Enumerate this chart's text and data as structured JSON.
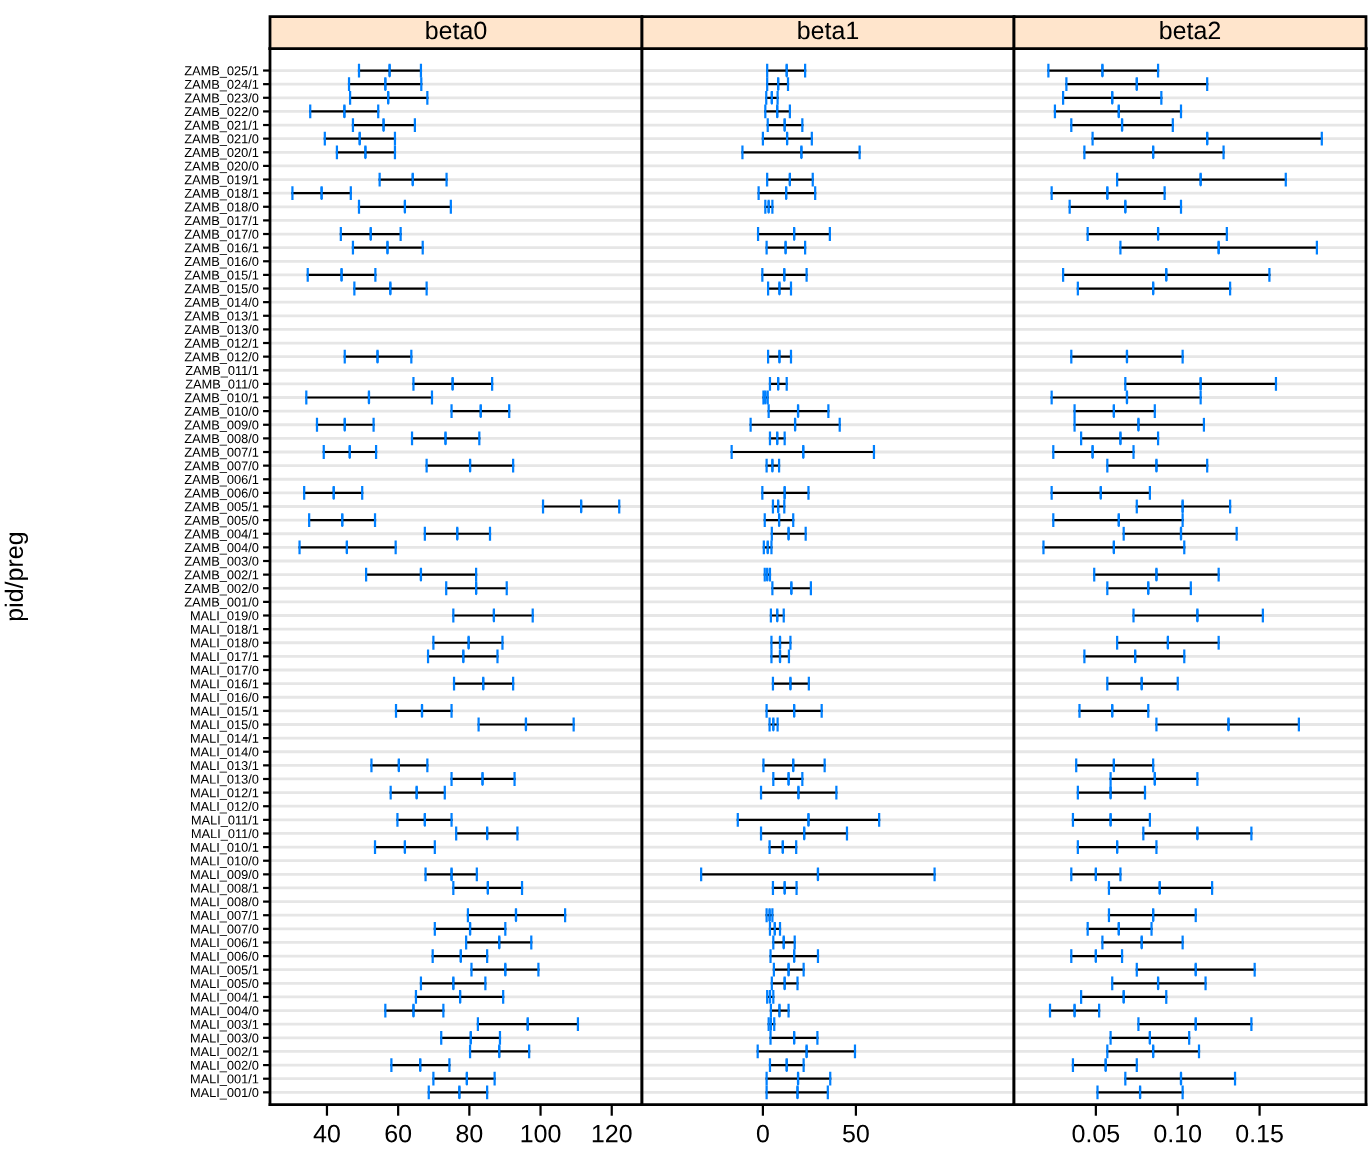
{
  "chart_data": [
    {
      "type": "box",
      "title": "beta0",
      "ylabel": "pid/preg",
      "orientation": "horizontal",
      "grid": "y",
      "xlim": [
        24,
        128.5
      ],
      "xticks": [
        40,
        60,
        80,
        100,
        120
      ],
      "categories": [
        "ZAMB_025/1",
        "ZAMB_024/1",
        "ZAMB_023/0",
        "ZAMB_022/0",
        "ZAMB_021/1",
        "ZAMB_021/0",
        "ZAMB_020/1",
        "ZAMB_020/0",
        "ZAMB_019/1",
        "ZAMB_018/1",
        "ZAMB_018/0",
        "ZAMB_017/1",
        "ZAMB_017/0",
        "ZAMB_016/1",
        "ZAMB_016/0",
        "ZAMB_015/1",
        "ZAMB_015/0",
        "ZAMB_014/0",
        "ZAMB_013/1",
        "ZAMB_013/0",
        "ZAMB_012/1",
        "ZAMB_012/0",
        "ZAMB_011/1",
        "ZAMB_011/0",
        "ZAMB_010/1",
        "ZAMB_010/0",
        "ZAMB_009/0",
        "ZAMB_008/0",
        "ZAMB_007/1",
        "ZAMB_007/0",
        "ZAMB_006/1",
        "ZAMB_006/0",
        "ZAMB_005/1",
        "ZAMB_005/0",
        "ZAMB_004/1",
        "ZAMB_004/0",
        "ZAMB_003/0",
        "ZAMB_002/1",
        "ZAMB_002/0",
        "ZAMB_001/0",
        "MALI_019/0",
        "MALI_018/1",
        "MALI_018/0",
        "MALI_017/1",
        "MALI_017/0",
        "MALI_016/1",
        "MALI_016/0",
        "MALI_015/1",
        "MALI_015/0",
        "MALI_014/1",
        "MALI_014/0",
        "MALI_013/1",
        "MALI_013/0",
        "MALI_012/1",
        "MALI_012/0",
        "MALI_011/1",
        "MALI_011/0",
        "MALI_010/1",
        "MALI_010/0",
        "MALI_009/0",
        "MALI_008/1",
        "MALI_008/0",
        "MALI_007/1",
        "MALI_007/0",
        "MALI_006/1",
        "MALI_006/0",
        "MALI_005/1",
        "MALI_005/0",
        "MALI_004/1",
        "MALI_004/0",
        "MALI_003/1",
        "MALI_003/0",
        "MALI_002/1",
        "MALI_002/0",
        "MALI_001/1",
        "MALI_001/0"
      ],
      "series": [
        {
          "color": "#0080ff",
          "boxes": [
            {
              "low": 49.0,
              "q1": 57.6,
              "median": 57.6,
              "q3": 57.6,
              "high": 66.4
            },
            {
              "low": 46.2,
              "q1": 56.4,
              "median": 56.4,
              "q3": 56.4,
              "high": 66.5
            },
            {
              "low": 46.5,
              "q1": 57.2,
              "median": 57.2,
              "q3": 57.2,
              "high": 68.2
            },
            {
              "low": 35.3,
              "q1": 44.9,
              "median": 44.9,
              "q3": 44.9,
              "high": 54.4
            },
            {
              "low": 47.3,
              "q1": 55.9,
              "median": 55.9,
              "q3": 55.9,
              "high": 64.7
            },
            {
              "low": 39.4,
              "q1": 49.2,
              "median": 49.2,
              "q3": 49.2,
              "high": 59.1
            },
            {
              "low": 42.8,
              "q1": 50.8,
              "median": 50.8,
              "q3": 50.8,
              "high": 59.1
            },
            null,
            {
              "low": 54.8,
              "q1": 64.1,
              "median": 64.1,
              "q3": 64.1,
              "high": 73.6
            },
            {
              "low": 30.3,
              "q1": 38.5,
              "median": 38.5,
              "q3": 38.5,
              "high": 46.7
            },
            {
              "low": 49.0,
              "q1": 61.9,
              "median": 61.9,
              "q3": 61.9,
              "high": 74.8
            },
            null,
            {
              "low": 43.9,
              "q1": 52.3,
              "median": 52.3,
              "q3": 52.3,
              "high": 60.7
            },
            {
              "low": 47.3,
              "q1": 57.0,
              "median": 57.0,
              "q3": 57.0,
              "high": 66.9
            },
            null,
            {
              "low": 34.6,
              "q1": 44.1,
              "median": 44.1,
              "q3": 44.1,
              "high": 53.6
            },
            {
              "low": 47.7,
              "q1": 57.8,
              "median": 57.8,
              "q3": 57.8,
              "high": 68.0
            },
            null,
            null,
            null,
            null,
            {
              "low": 45.0,
              "q1": 54.2,
              "median": 54.2,
              "q3": 54.2,
              "high": 63.7
            },
            null,
            {
              "low": 64.3,
              "q1": 75.3,
              "median": 75.3,
              "q3": 75.3,
              "high": 86.4
            },
            {
              "low": 34.2,
              "q1": 51.8,
              "median": 51.8,
              "q3": 51.8,
              "high": 69.5
            },
            {
              "low": 75.0,
              "q1": 83.2,
              "median": 83.2,
              "q3": 83.2,
              "high": 91.2
            },
            {
              "low": 37.2,
              "q1": 45.0,
              "median": 45.0,
              "q3": 45.0,
              "high": 53.1
            },
            {
              "low": 63.9,
              "q1": 73.3,
              "median": 73.3,
              "q3": 73.3,
              "high": 82.8
            },
            {
              "low": 39.1,
              "q1": 46.4,
              "median": 46.4,
              "q3": 46.4,
              "high": 53.8
            },
            {
              "low": 68.0,
              "q1": 80.2,
              "median": 80.2,
              "q3": 80.2,
              "high": 92.3
            },
            null,
            {
              "low": 33.6,
              "q1": 41.9,
              "median": 41.9,
              "q3": 41.9,
              "high": 49.9
            },
            {
              "low": 100.7,
              "q1": 111.4,
              "median": 111.4,
              "q3": 111.4,
              "high": 122.1
            },
            {
              "low": 35.0,
              "q1": 44.3,
              "median": 44.3,
              "q3": 44.3,
              "high": 53.5
            },
            {
              "low": 67.5,
              "q1": 76.6,
              "median": 76.6,
              "q3": 76.6,
              "high": 85.8
            },
            {
              "low": 32.3,
              "q1": 45.6,
              "median": 45.6,
              "q3": 45.6,
              "high": 59.3
            },
            null,
            {
              "low": 51.0,
              "q1": 66.4,
              "median": 66.4,
              "q3": 66.4,
              "high": 81.9
            },
            {
              "low": 73.5,
              "q1": 81.9,
              "median": 81.9,
              "q3": 81.9,
              "high": 90.5
            },
            null,
            {
              "low": 75.5,
              "q1": 86.9,
              "median": 86.9,
              "q3": 86.9,
              "high": 97.8
            },
            null,
            {
              "low": 69.9,
              "q1": 79.8,
              "median": 79.8,
              "q3": 79.8,
              "high": 89.3
            },
            {
              "low": 68.4,
              "q1": 78.3,
              "median": 78.3,
              "q3": 78.3,
              "high": 87.9
            },
            null,
            {
              "low": 75.7,
              "q1": 83.9,
              "median": 83.9,
              "q3": 83.9,
              "high": 92.3
            },
            null,
            {
              "low": 59.4,
              "q1": 66.7,
              "median": 66.7,
              "q3": 66.7,
              "high": 75.0
            },
            {
              "low": 82.6,
              "q1": 95.9,
              "median": 95.9,
              "q3": 95.9,
              "high": 109.3
            },
            null,
            null,
            {
              "low": 52.5,
              "q1": 60.2,
              "median": 60.2,
              "q3": 60.2,
              "high": 68.2
            },
            {
              "low": 75.0,
              "q1": 83.7,
              "median": 83.7,
              "q3": 83.7,
              "high": 92.7
            },
            {
              "low": 57.9,
              "q1": 65.2,
              "median": 65.2,
              "q3": 65.2,
              "high": 73.1
            },
            null,
            {
              "low": 59.8,
              "q1": 67.5,
              "median": 67.5,
              "q3": 67.5,
              "high": 75.0
            },
            {
              "low": 76.3,
              "q1": 85.0,
              "median": 85.0,
              "q3": 85.0,
              "high": 93.5
            },
            {
              "low": 53.5,
              "q1": 61.9,
              "median": 61.9,
              "q3": 61.9,
              "high": 70.3
            },
            null,
            {
              "low": 67.7,
              "q1": 75.0,
              "median": 75.0,
              "q3": 75.0,
              "high": 82.1
            },
            {
              "low": 75.5,
              "q1": 85.2,
              "median": 85.2,
              "q3": 85.2,
              "high": 94.8
            },
            null,
            {
              "low": 79.6,
              "q1": 93.1,
              "median": 93.1,
              "q3": 93.1,
              "high": 106.9
            },
            {
              "low": 70.3,
              "q1": 80.2,
              "median": 80.2,
              "q3": 80.2,
              "high": 90.1
            },
            {
              "low": 79.1,
              "q1": 88.4,
              "median": 88.4,
              "q3": 88.4,
              "high": 97.4
            },
            {
              "low": 69.7,
              "q1": 77.6,
              "median": 77.6,
              "q3": 77.6,
              "high": 85.0
            },
            {
              "low": 80.6,
              "q1": 90.1,
              "median": 90.1,
              "q3": 90.1,
              "high": 99.4
            },
            {
              "low": 66.4,
              "q1": 75.5,
              "median": 75.5,
              "q3": 75.5,
              "high": 84.5
            },
            {
              "low": 65.0,
              "q1": 77.4,
              "median": 77.4,
              "q3": 77.4,
              "high": 89.5
            },
            {
              "low": 56.4,
              "q1": 64.3,
              "median": 64.3,
              "q3": 64.3,
              "high": 72.7
            },
            {
              "low": 82.4,
              "q1": 96.4,
              "median": 96.4,
              "q3": 96.4,
              "high": 110.5
            },
            {
              "low": 72.1,
              "q1": 80.4,
              "median": 80.4,
              "q3": 80.4,
              "high": 88.6
            },
            {
              "low": 80.2,
              "q1": 88.4,
              "median": 88.4,
              "q3": 88.4,
              "high": 96.8
            },
            {
              "low": 58.1,
              "q1": 66.2,
              "median": 66.2,
              "q3": 66.2,
              "high": 74.4
            },
            {
              "low": 69.9,
              "q1": 79.3,
              "median": 79.3,
              "q3": 79.3,
              "high": 87.1
            },
            {
              "low": 68.6,
              "q1": 77.2,
              "median": 77.2,
              "q3": 77.2,
              "high": 85.0
            }
          ]
        }
      ]
    },
    {
      "type": "box",
      "title": "beta1",
      "orientation": "horizontal",
      "grid": "y",
      "tick_labels": "x",
      "xlim": [
        -65,
        135
      ],
      "xticks": [
        0,
        50
      ],
      "categories": [
        null,
        null,
        null,
        null,
        null,
        null,
        null,
        null,
        null,
        null,
        null,
        null,
        null,
        null,
        null,
        null,
        null,
        null,
        null,
        null,
        null,
        null,
        null,
        null,
        null,
        null,
        null,
        null,
        null,
        null,
        null,
        null,
        null,
        null,
        null,
        null,
        null,
        null,
        null,
        null,
        null,
        null,
        null,
        null,
        null,
        null,
        null,
        null,
        null,
        null,
        null,
        null,
        null,
        null,
        null,
        null,
        null,
        null,
        null,
        null,
        null,
        null,
        null,
        null,
        null,
        null,
        null,
        null,
        null,
        null,
        null,
        null,
        null,
        null,
        null,
        null
      ],
      "series": [
        {
          "color": "#0080ff",
          "boxes": [
            {
              "low": 2.3,
              "q1": 12.8,
              "median": 12.8,
              "q3": 12.8,
              "high": 22.7
            },
            {
              "low": 2.3,
              "q1": 8.2,
              "median": 8.2,
              "q3": 8.2,
              "high": 13.5
            },
            {
              "low": 1.8,
              "q1": 4.8,
              "median": 4.8,
              "q3": 4.8,
              "high": 7.9
            },
            {
              "low": 1.3,
              "q1": 7.7,
              "median": 7.7,
              "q3": 7.7,
              "high": 14.5
            },
            {
              "low": 2.6,
              "q1": 11.7,
              "median": 11.7,
              "q3": 11.7,
              "high": 21.2
            },
            {
              "low": 0.0,
              "q1": 13.0,
              "median": 13.0,
              "q3": 13.0,
              "high": 26.3
            },
            {
              "low": -11.0,
              "q1": 20.7,
              "median": 20.7,
              "q3": 20.7,
              "high": 52.0
            },
            null,
            {
              "low": 2.3,
              "q1": 14.5,
              "median": 14.5,
              "q3": 14.5,
              "high": 26.8
            },
            {
              "low": -2.3,
              "q1": 12.5,
              "median": 12.5,
              "q3": 12.5,
              "high": 28.1
            },
            {
              "low": 1.3,
              "q1": 3.1,
              "median": 3.1,
              "q3": 3.1,
              "high": 5.1
            },
            null,
            {
              "low": -2.6,
              "q1": 16.8,
              "median": 16.8,
              "q3": 16.8,
              "high": 36.0
            },
            {
              "low": 2.0,
              "q1": 12.2,
              "median": 12.2,
              "q3": 12.2,
              "high": 22.7
            },
            null,
            {
              "low": -0.3,
              "q1": 11.5,
              "median": 11.5,
              "q3": 11.5,
              "high": 23.5
            },
            {
              "low": 2.8,
              "q1": 8.9,
              "median": 8.9,
              "q3": 8.9,
              "high": 15.1
            },
            null,
            null,
            null,
            null,
            {
              "low": 2.8,
              "q1": 8.9,
              "median": 8.9,
              "q3": 8.9,
              "high": 15.1
            },
            null,
            {
              "low": 3.8,
              "q1": 8.2,
              "median": 8.2,
              "q3": 8.2,
              "high": 12.8
            },
            {
              "low": 0.3,
              "q1": 1.3,
              "median": 1.3,
              "q3": 1.3,
              "high": 2.6
            },
            {
              "low": 3.1,
              "q1": 18.9,
              "median": 18.9,
              "q3": 18.9,
              "high": 35.2
            },
            {
              "low": -6.6,
              "q1": 17.3,
              "median": 17.3,
              "q3": 17.3,
              "high": 41.3
            },
            {
              "low": 3.8,
              "q1": 7.7,
              "median": 7.7,
              "q3": 7.7,
              "high": 11.7
            },
            {
              "low": -16.8,
              "q1": 21.7,
              "median": 21.7,
              "q3": 21.7,
              "high": 59.7
            },
            {
              "low": 2.0,
              "q1": 5.1,
              "median": 5.1,
              "q3": 5.1,
              "high": 8.7
            },
            null,
            {
              "low": -0.3,
              "q1": 11.7,
              "median": 11.7,
              "q3": 11.7,
              "high": 24.5
            },
            {
              "low": 5.4,
              "q1": 8.2,
              "median": 8.2,
              "q3": 8.2,
              "high": 11.5
            },
            {
              "low": 1.0,
              "q1": 8.7,
              "median": 8.7,
              "q3": 8.7,
              "high": 16.3
            },
            {
              "low": 4.8,
              "q1": 13.8,
              "median": 13.8,
              "q3": 13.8,
              "high": 23.0
            },
            {
              "low": 0.5,
              "q1": 2.6,
              "median": 2.6,
              "q3": 2.6,
              "high": 4.6
            },
            null,
            {
              "low": 1.0,
              "q1": 2.3,
              "median": 2.3,
              "q3": 2.3,
              "high": 3.8
            },
            {
              "low": 5.1,
              "q1": 15.3,
              "median": 15.3,
              "q3": 15.3,
              "high": 25.8
            },
            null,
            {
              "low": 4.3,
              "q1": 7.7,
              "median": 7.7,
              "q3": 7.7,
              "high": 11.2
            },
            null,
            {
              "low": 4.6,
              "q1": 9.2,
              "median": 9.2,
              "q3": 9.2,
              "high": 14.8
            },
            {
              "low": 4.6,
              "q1": 9.2,
              "median": 9.2,
              "q3": 9.2,
              "high": 14.0
            },
            null,
            {
              "low": 5.4,
              "q1": 14.8,
              "median": 14.8,
              "q3": 14.8,
              "high": 24.7
            },
            null,
            {
              "low": 2.0,
              "q1": 16.8,
              "median": 16.8,
              "q3": 16.8,
              "high": 31.6
            },
            {
              "low": 3.6,
              "q1": 5.6,
              "median": 5.6,
              "q3": 5.6,
              "high": 7.9
            },
            null,
            null,
            {
              "low": 0.3,
              "q1": 16.3,
              "median": 16.3,
              "q3": 16.3,
              "high": 33.2
            },
            {
              "low": 5.6,
              "q1": 13.8,
              "median": 13.8,
              "q3": 13.8,
              "high": 21.2
            },
            {
              "low": -1.0,
              "q1": 19.1,
              "median": 19.1,
              "q3": 19.1,
              "high": 39.5
            },
            null,
            {
              "low": -13.5,
              "q1": 24.5,
              "median": 24.5,
              "q3": 24.5,
              "high": 62.5
            },
            {
              "low": -1.0,
              "q1": 22.2,
              "median": 22.2,
              "q3": 22.2,
              "high": 45.2
            },
            {
              "low": 3.6,
              "q1": 10.7,
              "median": 10.7,
              "q3": 10.7,
              "high": 17.9
            },
            null,
            {
              "low": -33.2,
              "q1": 29.6,
              "median": 29.6,
              "q3": 29.6,
              "high": 92.3
            },
            {
              "low": 5.4,
              "q1": 11.7,
              "median": 11.7,
              "q3": 11.7,
              "high": 18.1
            },
            null,
            {
              "low": 2.0,
              "q1": 3.6,
              "median": 3.6,
              "q3": 3.6,
              "high": 5.1
            },
            {
              "low": 3.8,
              "q1": 6.4,
              "median": 6.4,
              "q3": 6.4,
              "high": 9.2
            },
            {
              "low": 5.6,
              "q1": 11.2,
              "median": 11.2,
              "q3": 11.2,
              "high": 17.1
            },
            {
              "low": 4.1,
              "q1": 16.8,
              "median": 16.8,
              "q3": 16.8,
              "high": 29.6
            },
            {
              "low": 5.9,
              "q1": 13.8,
              "median": 13.8,
              "q3": 13.8,
              "high": 21.9
            },
            {
              "low": 4.8,
              "q1": 11.7,
              "median": 11.7,
              "q3": 11.7,
              "high": 18.6
            },
            {
              "low": 2.3,
              "q1": 3.8,
              "median": 3.8,
              "q3": 3.8,
              "high": 5.6
            },
            {
              "low": 4.3,
              "q1": 8.9,
              "median": 8.9,
              "q3": 8.9,
              "high": 13.8
            },
            {
              "low": 3.1,
              "q1": 4.3,
              "median": 4.3,
              "q3": 4.3,
              "high": 6.1
            },
            {
              "low": 4.1,
              "q1": 16.8,
              "median": 16.8,
              "q3": 16.8,
              "high": 29.3
            },
            {
              "low": -2.8,
              "q1": 23.5,
              "median": 23.5,
              "q3": 23.5,
              "high": 49.5
            },
            {
              "low": 3.8,
              "q1": 12.8,
              "median": 12.8,
              "q3": 12.8,
              "high": 21.9
            },
            {
              "low": 2.0,
              "q1": 18.9,
              "median": 18.9,
              "q3": 18.9,
              "high": 36.2
            },
            {
              "low": 2.0,
              "q1": 18.6,
              "median": 18.6,
              "q3": 18.6,
              "high": 34.9
            }
          ]
        }
      ]
    },
    {
      "type": "box",
      "title": "beta2",
      "orientation": "horizontal",
      "grid": "y",
      "tick_labels": "x",
      "xlim": [
        0.0,
        0.215
      ],
      "xticks": [
        0.05,
        {
          "value": 0.1,
          "label": "0.10"
        },
        0.15
      ],
      "categories": [
        null,
        null,
        null,
        null,
        null,
        null,
        null,
        null,
        null,
        null,
        null,
        null,
        null,
        null,
        null,
        null,
        null,
        null,
        null,
        null,
        null,
        null,
        null,
        null,
        null,
        null,
        null,
        null,
        null,
        null,
        null,
        null,
        null,
        null,
        null,
        null,
        null,
        null,
        null,
        null,
        null,
        null,
        null,
        null,
        null,
        null,
        null,
        null,
        null,
        null,
        null,
        null,
        null,
        null,
        null,
        null,
        null,
        null,
        null,
        null,
        null,
        null,
        null,
        null,
        null,
        null,
        null,
        null,
        null,
        null,
        null,
        null,
        null,
        null,
        null,
        null
      ],
      "series": [
        {
          "color": "#0080ff",
          "boxes": [
            {
              "low": 0.021,
              "q1": 0.054,
              "median": 0.054,
              "q3": 0.054,
              "high": 0.088
            },
            {
              "low": 0.032,
              "q1": 0.075,
              "median": 0.075,
              "q3": 0.075,
              "high": 0.118
            },
            {
              "low": 0.03,
              "q1": 0.06,
              "median": 0.06,
              "q3": 0.06,
              "high": 0.09
            },
            {
              "low": 0.025,
              "q1": 0.064,
              "median": 0.064,
              "q3": 0.064,
              "high": 0.102
            },
            {
              "low": 0.035,
              "q1": 0.066,
              "median": 0.066,
              "q3": 0.066,
              "high": 0.097
            },
            {
              "low": 0.048,
              "q1": 0.118,
              "median": 0.118,
              "q3": 0.118,
              "high": 0.188
            },
            {
              "low": 0.043,
              "q1": 0.085,
              "median": 0.085,
              "q3": 0.085,
              "high": 0.128
            },
            null,
            {
              "low": 0.063,
              "q1": 0.114,
              "median": 0.114,
              "q3": 0.114,
              "high": 0.166
            },
            {
              "low": 0.023,
              "q1": 0.057,
              "median": 0.057,
              "q3": 0.057,
              "high": 0.092
            },
            {
              "low": 0.034,
              "q1": 0.068,
              "median": 0.068,
              "q3": 0.068,
              "high": 0.102
            },
            null,
            {
              "low": 0.045,
              "q1": 0.088,
              "median": 0.088,
              "q3": 0.088,
              "high": 0.13
            },
            {
              "low": 0.065,
              "q1": 0.125,
              "median": 0.125,
              "q3": 0.125,
              "high": 0.185
            },
            null,
            {
              "low": 0.03,
              "q1": 0.093,
              "median": 0.093,
              "q3": 0.093,
              "high": 0.156
            },
            {
              "low": 0.039,
              "q1": 0.085,
              "median": 0.085,
              "q3": 0.085,
              "high": 0.132
            },
            null,
            null,
            null,
            null,
            {
              "low": 0.035,
              "q1": 0.069,
              "median": 0.069,
              "q3": 0.069,
              "high": 0.103
            },
            null,
            {
              "low": 0.068,
              "q1": 0.114,
              "median": 0.114,
              "q3": 0.114,
              "high": 0.16
            },
            {
              "low": 0.023,
              "q1": 0.069,
              "median": 0.069,
              "q3": 0.069,
              "high": 0.114
            },
            {
              "low": 0.037,
              "q1": 0.061,
              "median": 0.061,
              "q3": 0.061,
              "high": 0.086
            },
            {
              "low": 0.037,
              "q1": 0.076,
              "median": 0.076,
              "q3": 0.076,
              "high": 0.116
            },
            {
              "low": 0.041,
              "q1": 0.065,
              "median": 0.065,
              "q3": 0.065,
              "high": 0.088
            },
            {
              "low": 0.024,
              "q1": 0.048,
              "median": 0.048,
              "q3": 0.048,
              "high": 0.073
            },
            {
              "low": 0.057,
              "q1": 0.087,
              "median": 0.087,
              "q3": 0.087,
              "high": 0.118
            },
            null,
            {
              "low": 0.023,
              "q1": 0.053,
              "median": 0.053,
              "q3": 0.053,
              "high": 0.083
            },
            {
              "low": 0.075,
              "q1": 0.103,
              "median": 0.103,
              "q3": 0.103,
              "high": 0.132
            },
            {
              "low": 0.024,
              "q1": 0.064,
              "median": 0.064,
              "q3": 0.064,
              "high": 0.103
            },
            {
              "low": 0.067,
              "q1": 0.102,
              "median": 0.102,
              "q3": 0.102,
              "high": 0.136
            },
            {
              "low": 0.018,
              "q1": 0.061,
              "median": 0.061,
              "q3": 0.061,
              "high": 0.104
            },
            null,
            {
              "low": 0.049,
              "q1": 0.087,
              "median": 0.087,
              "q3": 0.087,
              "high": 0.125
            },
            {
              "low": 0.057,
              "q1": 0.082,
              "median": 0.082,
              "q3": 0.082,
              "high": 0.108
            },
            null,
            {
              "low": 0.073,
              "q1": 0.112,
              "median": 0.112,
              "q3": 0.112,
              "high": 0.152
            },
            null,
            {
              "low": 0.063,
              "q1": 0.094,
              "median": 0.094,
              "q3": 0.094,
              "high": 0.125
            },
            {
              "low": 0.043,
              "q1": 0.074,
              "median": 0.074,
              "q3": 0.074,
              "high": 0.104
            },
            null,
            {
              "low": 0.057,
              "q1": 0.078,
              "median": 0.078,
              "q3": 0.078,
              "high": 0.1
            },
            null,
            {
              "low": 0.04,
              "q1": 0.06,
              "median": 0.06,
              "q3": 0.06,
              "high": 0.082
            },
            {
              "low": 0.087,
              "q1": 0.131,
              "median": 0.131,
              "q3": 0.131,
              "high": 0.174
            },
            null,
            null,
            {
              "low": 0.038,
              "q1": 0.061,
              "median": 0.061,
              "q3": 0.061,
              "high": 0.085
            },
            {
              "low": 0.059,
              "q1": 0.086,
              "median": 0.086,
              "q3": 0.086,
              "high": 0.112
            },
            {
              "low": 0.039,
              "q1": 0.059,
              "median": 0.059,
              "q3": 0.059,
              "high": 0.08
            },
            null,
            {
              "low": 0.036,
              "q1": 0.059,
              "median": 0.059,
              "q3": 0.059,
              "high": 0.083
            },
            {
              "low": 0.079,
              "q1": 0.112,
              "median": 0.112,
              "q3": 0.112,
              "high": 0.145
            },
            {
              "low": 0.039,
              "q1": 0.063,
              "median": 0.063,
              "q3": 0.063,
              "high": 0.087
            },
            null,
            {
              "low": 0.035,
              "q1": 0.05,
              "median": 0.05,
              "q3": 0.05,
              "high": 0.065
            },
            {
              "low": 0.058,
              "q1": 0.089,
              "median": 0.089,
              "q3": 0.089,
              "high": 0.121
            },
            null,
            {
              "low": 0.058,
              "q1": 0.085,
              "median": 0.085,
              "q3": 0.085,
              "high": 0.111
            },
            {
              "low": 0.045,
              "q1": 0.064,
              "median": 0.064,
              "q3": 0.064,
              "high": 0.084
            },
            {
              "low": 0.054,
              "q1": 0.078,
              "median": 0.078,
              "q3": 0.078,
              "high": 0.103
            },
            {
              "low": 0.035,
              "q1": 0.05,
              "median": 0.05,
              "q3": 0.05,
              "high": 0.066
            },
            {
              "low": 0.075,
              "q1": 0.111,
              "median": 0.111,
              "q3": 0.111,
              "high": 0.147
            },
            {
              "low": 0.06,
              "q1": 0.088,
              "median": 0.088,
              "q3": 0.088,
              "high": 0.117
            },
            {
              "low": 0.041,
              "q1": 0.067,
              "median": 0.067,
              "q3": 0.067,
              "high": 0.093
            },
            {
              "low": 0.022,
              "q1": 0.037,
              "median": 0.037,
              "q3": 0.037,
              "high": 0.052
            },
            {
              "low": 0.076,
              "q1": 0.111,
              "median": 0.111,
              "q3": 0.111,
              "high": 0.145
            },
            {
              "low": 0.059,
              "q1": 0.083,
              "median": 0.083,
              "q3": 0.083,
              "high": 0.107
            },
            {
              "low": 0.057,
              "q1": 0.085,
              "median": 0.085,
              "q3": 0.085,
              "high": 0.113
            },
            {
              "low": 0.036,
              "q1": 0.056,
              "median": 0.056,
              "q3": 0.056,
              "high": 0.075
            },
            {
              "low": 0.068,
              "q1": 0.102,
              "median": 0.102,
              "q3": 0.102,
              "high": 0.135
            },
            {
              "low": 0.051,
              "q1": 0.077,
              "median": 0.077,
              "q3": 0.077,
              "high": 0.103
            }
          ]
        }
      ]
    }
  ]
}
